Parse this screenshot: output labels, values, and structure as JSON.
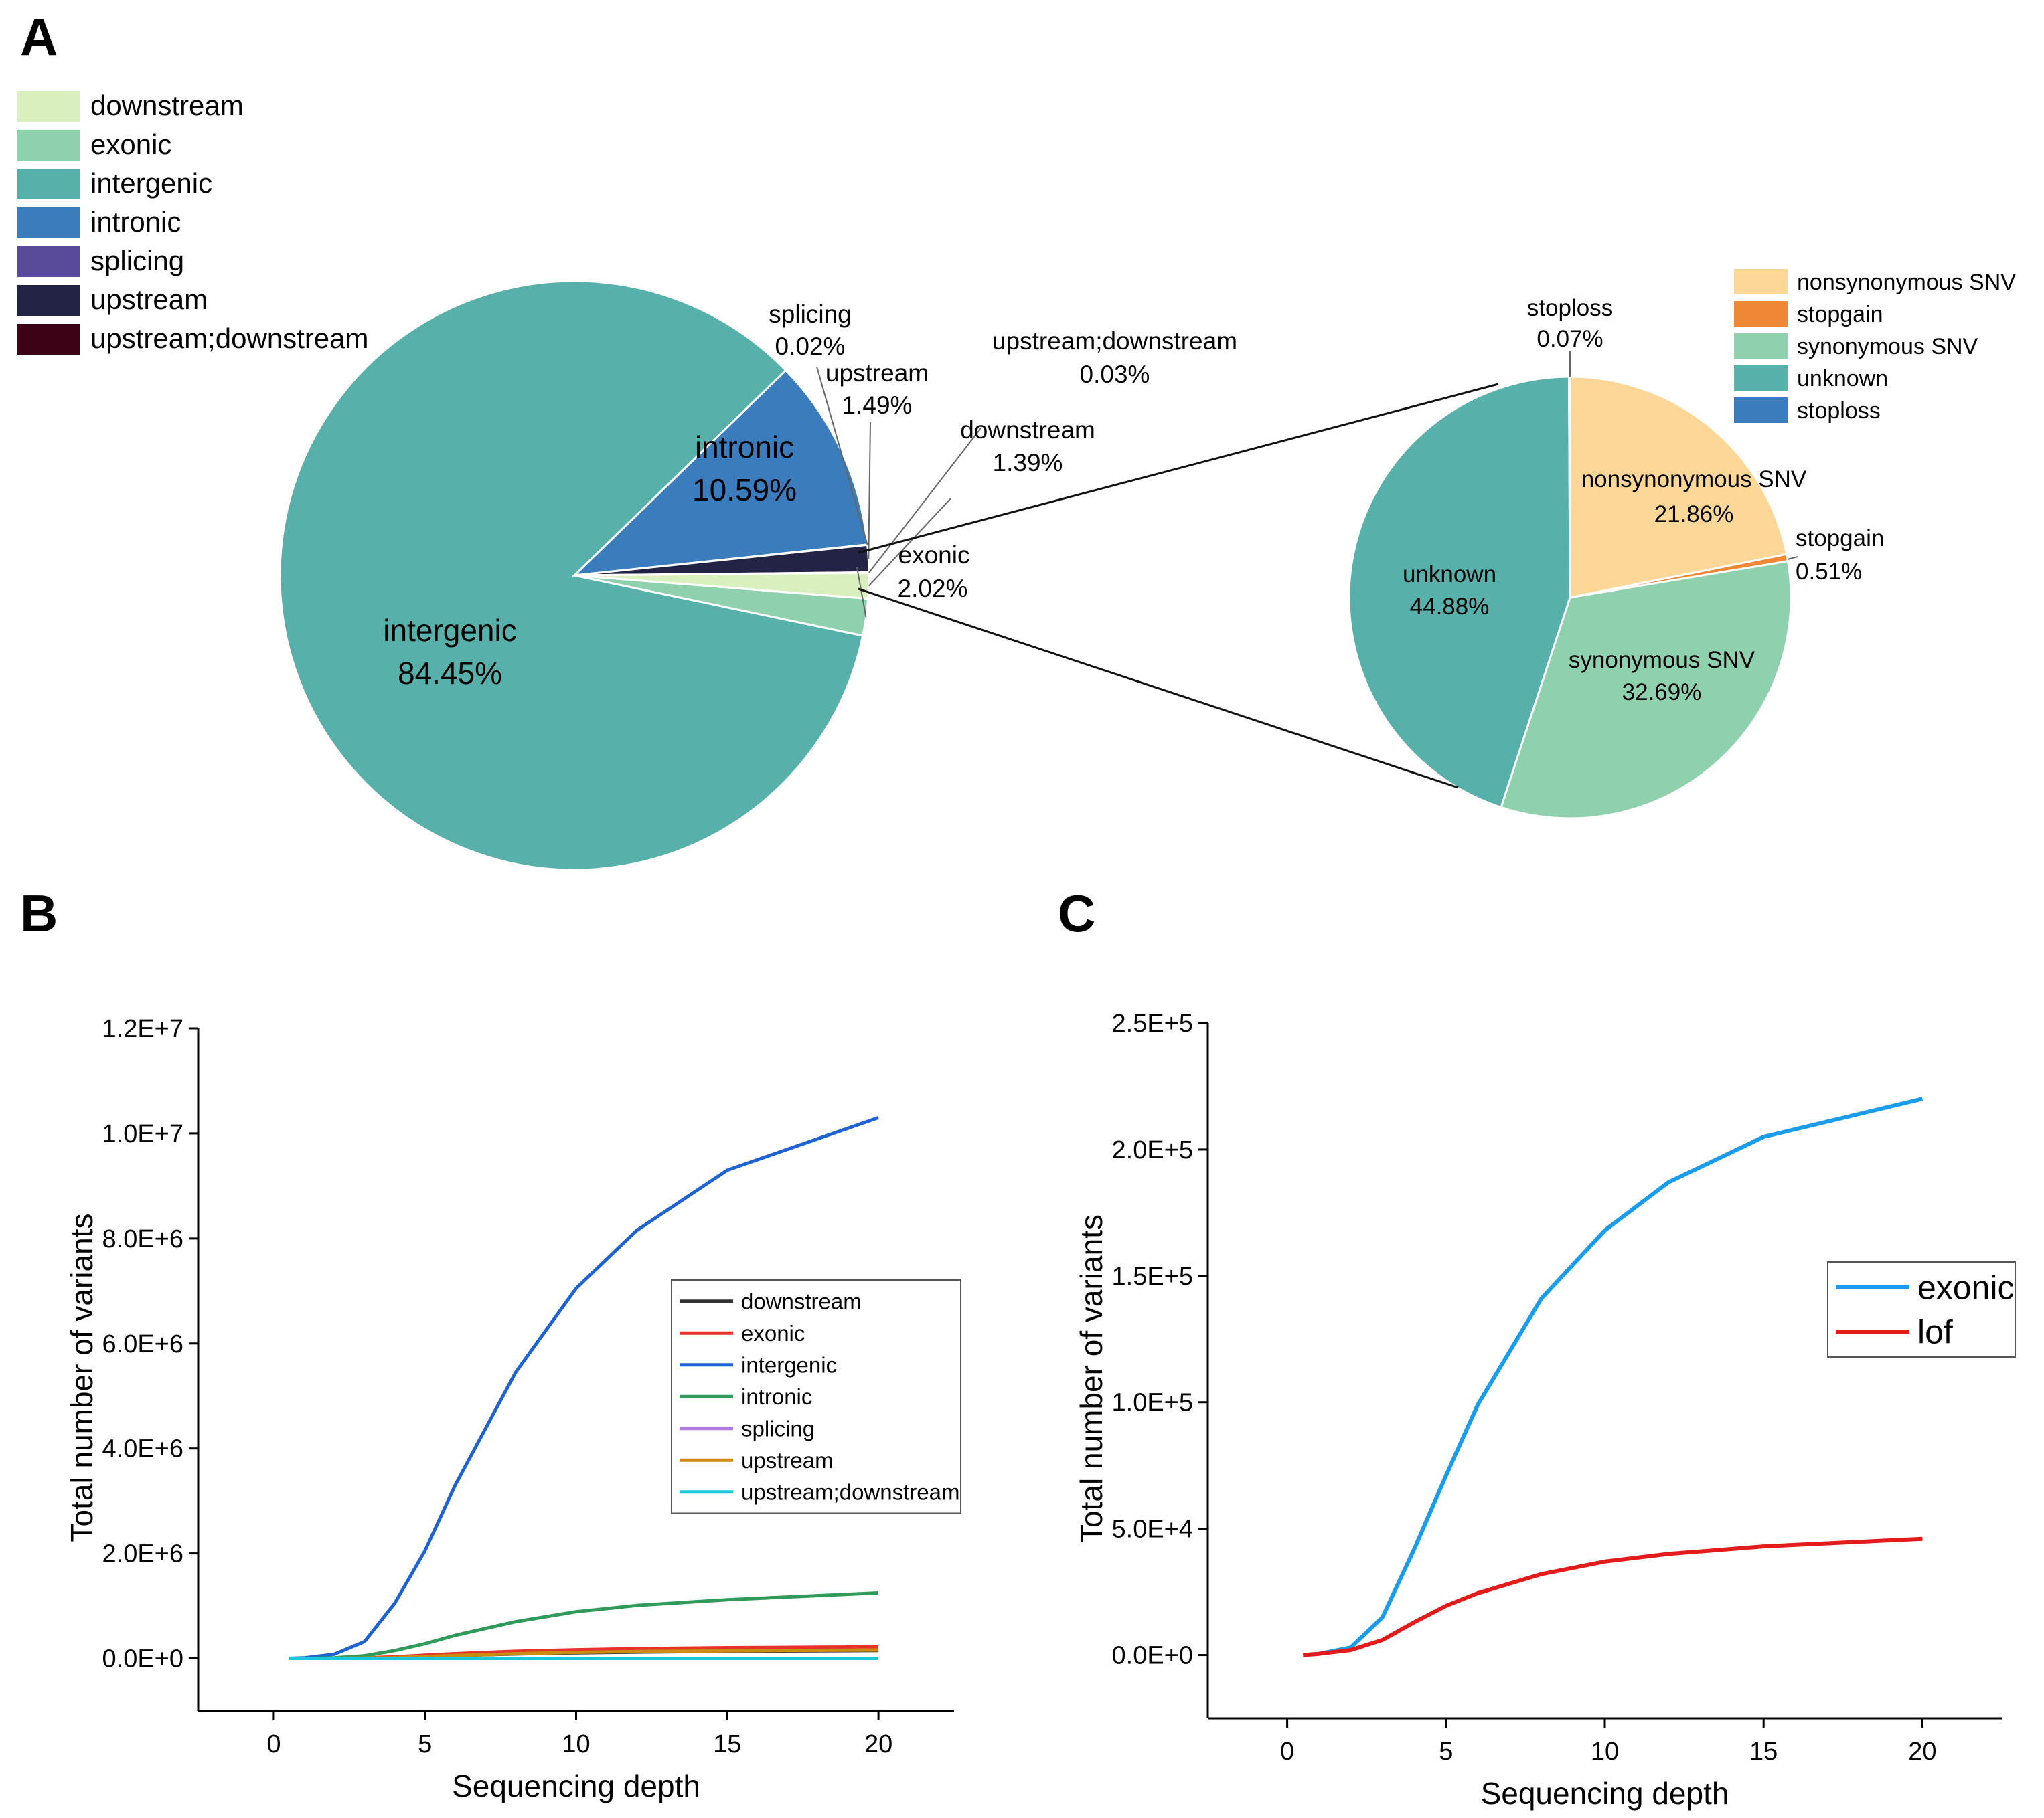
{
  "panels": {
    "a": "A",
    "b": "B",
    "c": "C"
  },
  "colors": {
    "downstream": "#d9efbe",
    "exonic": "#8fd1ae",
    "intergenic": "#57b0aa",
    "intronic": "#3a7cbc",
    "splicing": "#5a4a9a",
    "upstream": "#232346",
    "updown": "#3e0216",
    "nonsyn": "#fcd798",
    "stopgain": "#ee8834",
    "syn": "#8fd1ae",
    "unknown": "#57b0aa",
    "stoploss": "#3a7cbc",
    "b_downstream": "#333333",
    "b_exonic": "#e5322b",
    "b_intergenic": "#1f63d3",
    "b_intronic": "#2f9a5a",
    "b_splicing": "#b07ce0",
    "b_upstream": "#cc8c11",
    "b_updown": "#18c8dc",
    "c_exonic": "#1a9cec",
    "c_lof": "#e31b1b"
  },
  "chart_data": [
    {
      "type": "pie",
      "id": "A-main",
      "legend": [
        "downstream",
        "exonic",
        "intergenic",
        "intronic",
        "splicing",
        "upstream",
        "upstream;downstream"
      ],
      "slices": [
        {
          "label": "intergenic",
          "value": 84.45,
          "pct": "84.45%"
        },
        {
          "label": "intronic",
          "value": 10.59,
          "pct": "10.59%"
        },
        {
          "label": "splicing",
          "value": 0.02,
          "pct": "0.02%"
        },
        {
          "label": "upstream",
          "value": 1.49,
          "pct": "1.49%"
        },
        {
          "label": "upstream;downstream",
          "value": 0.03,
          "pct": "0.03%"
        },
        {
          "label": "downstream",
          "value": 1.39,
          "pct": "1.39%"
        },
        {
          "label": "exonic",
          "value": 2.02,
          "pct": "2.02%"
        }
      ]
    },
    {
      "type": "pie",
      "id": "A-exonic",
      "legend": [
        "nonsynonymous SNV",
        "stopgain",
        "synonymous SNV",
        "unknown",
        "stoploss"
      ],
      "slices": [
        {
          "label": "nonsynonymous SNV",
          "value": 21.86,
          "pct": "21.86%"
        },
        {
          "label": "stopgain",
          "value": 0.51,
          "pct": "0.51%"
        },
        {
          "label": "synonymous SNV",
          "value": 32.69,
          "pct": "32.69%"
        },
        {
          "label": "unknown",
          "value": 44.88,
          "pct": "44.88%"
        },
        {
          "label": "stoploss",
          "value": 0.07,
          "pct": "0.07%"
        }
      ]
    },
    {
      "type": "line",
      "id": "B",
      "xlabel": "Sequencing depth",
      "ylabel": "Total number of variants",
      "xlim": [
        -2.5,
        22.5
      ],
      "ylim": [
        -1000000,
        12000000
      ],
      "xticks": [
        0,
        5,
        10,
        15,
        20
      ],
      "xtick_labels": [
        "0",
        "5",
        "10",
        "15",
        "20"
      ],
      "yticks": [
        0,
        2000000,
        4000000,
        6000000,
        8000000,
        10000000,
        12000000
      ],
      "ytick_labels": [
        "0.0E+0",
        "2.0E+6",
        "4.0E+6",
        "6.0E+6",
        "8.0E+6",
        "1.0E+7",
        "1.2E+7"
      ],
      "x": [
        0.5,
        1,
        2,
        3,
        4,
        5,
        6,
        8,
        10,
        12,
        15,
        20
      ],
      "series": [
        {
          "name": "downstream",
          "values": [
            0,
            0,
            0,
            5000,
            15000,
            35000,
            55000,
            85000,
            105000,
            120000,
            135000,
            150000
          ]
        },
        {
          "name": "exonic",
          "values": [
            0,
            0,
            1000,
            10000,
            30000,
            60000,
            90000,
            135000,
            165000,
            185000,
            205000,
            220000
          ]
        },
        {
          "name": "intergenic",
          "values": [
            0,
            10000,
            80000,
            320000,
            1050000,
            2050000,
            3300000,
            5450000,
            7050000,
            8150000,
            9300000,
            10300000
          ]
        },
        {
          "name": "intronic",
          "values": [
            0,
            0,
            10000,
            50000,
            150000,
            280000,
            440000,
            700000,
            890000,
            1010000,
            1120000,
            1250000
          ]
        },
        {
          "name": "splicing",
          "values": [
            0,
            0,
            0,
            0,
            0,
            0,
            0,
            0,
            0,
            0,
            0,
            0
          ]
        },
        {
          "name": "upstream",
          "values": [
            0,
            0,
            0,
            5000,
            15000,
            35000,
            55000,
            90000,
            115000,
            130000,
            145000,
            160000
          ]
        },
        {
          "name": "upstream;downstream",
          "values": [
            0,
            0,
            0,
            0,
            0,
            0,
            0,
            0,
            0,
            0,
            0,
            0
          ]
        }
      ]
    },
    {
      "type": "line",
      "id": "C",
      "xlabel": "Sequencing depth",
      "ylabel": "Total number of variants",
      "xlim": [
        -2.5,
        22.5
      ],
      "ylim": [
        -25000,
        250000
      ],
      "xticks": [
        0,
        5,
        10,
        15,
        20
      ],
      "xtick_labels": [
        "0",
        "5",
        "10",
        "15",
        "20"
      ],
      "yticks": [
        0,
        50000,
        100000,
        150000,
        200000,
        250000
      ],
      "ytick_labels": [
        "0.0E+0",
        "5.0E+4",
        "1.0E+5",
        "1.5E+5",
        "2.0E+5",
        "2.5E+5"
      ],
      "x": [
        0.5,
        1,
        2,
        3,
        4,
        5,
        6,
        8,
        10,
        12,
        15,
        20
      ],
      "series": [
        {
          "name": "exonic",
          "values": [
            0,
            500,
            3000,
            15000,
            42000,
            71000,
            99000,
            141000,
            168000,
            187000,
            205000,
            220000
          ]
        },
        {
          "name": "lof",
          "values": [
            0,
            500,
            2000,
            6000,
            13000,
            19500,
            24500,
            32000,
            37000,
            40000,
            43000,
            46000
          ]
        }
      ]
    }
  ]
}
